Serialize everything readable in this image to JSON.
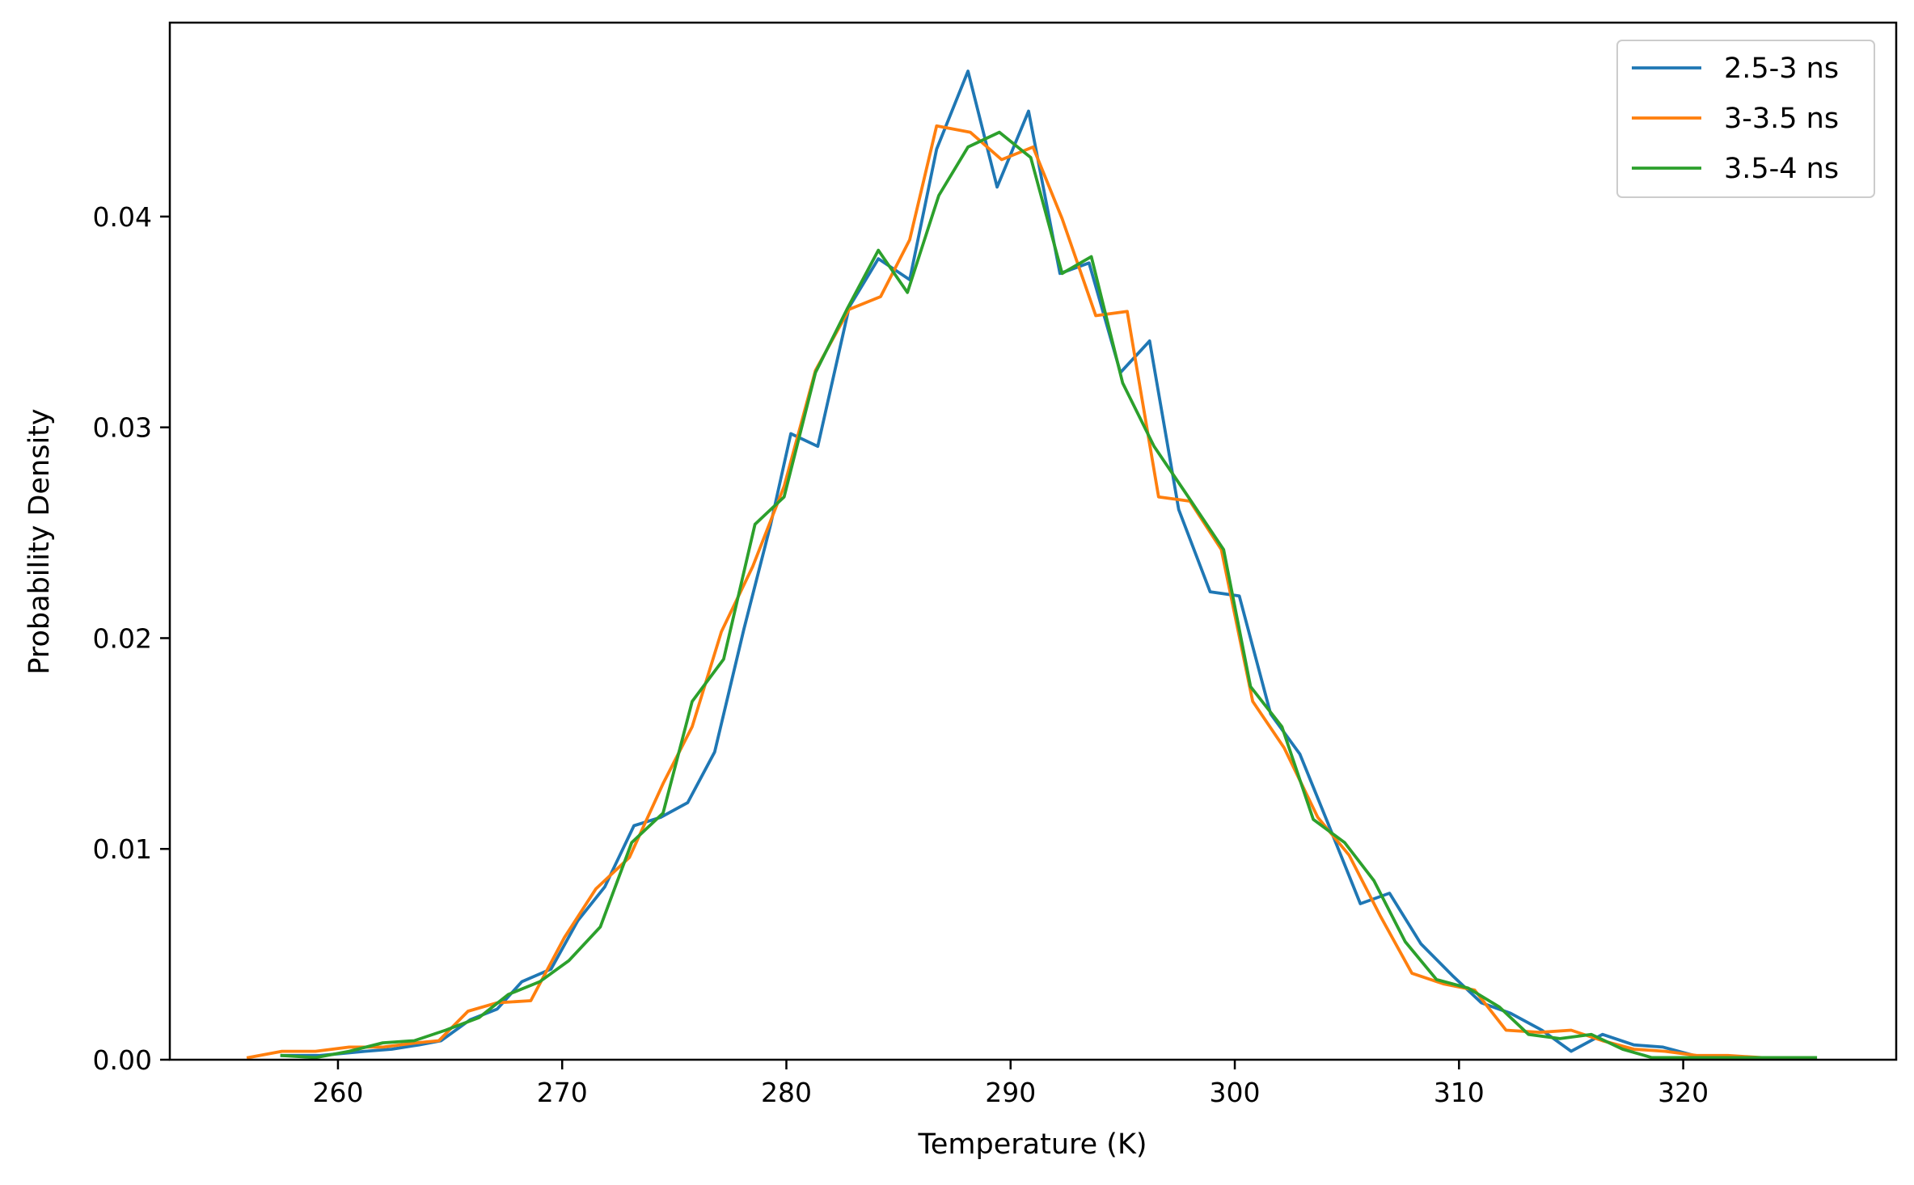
{
  "chart_data": {
    "type": "line",
    "title": "",
    "xlabel": "Temperature (K)",
    "ylabel": "Probability Density",
    "xlim": [
      252.5,
      329.5
    ],
    "ylim": [
      0,
      0.0492
    ],
    "xticks": [
      260,
      270,
      280,
      290,
      300,
      310,
      320
    ],
    "xtick_labels": [
      "260",
      "270",
      "280",
      "290",
      "300",
      "310",
      "320"
    ],
    "yticks": [
      0,
      0.01,
      0.02,
      0.03,
      0.04
    ],
    "ytick_labels": [
      "0.00",
      "0.01",
      "0.02",
      "0.03",
      "0.04"
    ],
    "grid": false,
    "legend_position": "top-right",
    "series": [
      {
        "name": "2.5-3 ns",
        "color": "#1f77b4",
        "x": [
          257.5,
          259.2,
          261.2,
          262.4,
          263.6,
          264.6,
          265.9,
          267.1,
          268.2,
          269.5,
          270.7,
          271.9,
          273.2,
          274.4,
          275.6,
          276.8,
          278.1,
          279.3,
          280.2,
          281.4,
          282.8,
          284.1,
          285.5,
          286.7,
          288.1,
          289.4,
          290.8,
          292.2,
          293.5,
          294.9,
          296.2,
          297.5,
          298.9,
          300.2,
          301.6,
          302.9,
          304.2,
          305.6,
          306.9,
          308.3,
          309.7,
          311.0,
          312.3,
          313.7,
          315.0,
          316.4,
          317.8,
          319.1,
          320.5,
          321.8,
          323.2
        ],
        "y": [
          0.0002,
          0.0002,
          0.0004,
          0.0005,
          0.0007,
          0.0009,
          0.0019,
          0.0024,
          0.0037,
          0.0043,
          0.0066,
          0.0082,
          0.0111,
          0.0115,
          0.0122,
          0.0146,
          0.0204,
          0.0254,
          0.0297,
          0.0291,
          0.0357,
          0.038,
          0.037,
          0.0432,
          0.0469,
          0.0414,
          0.045,
          0.0373,
          0.0378,
          0.0326,
          0.0341,
          0.0261,
          0.0222,
          0.022,
          0.0164,
          0.0145,
          0.0111,
          0.0074,
          0.0079,
          0.0055,
          0.004,
          0.0027,
          0.0022,
          0.0014,
          0.0004,
          0.0012,
          0.0007,
          0.0006,
          0.0002,
          0.0001,
          0.0001
        ]
      },
      {
        "name": "3-3.5 ns",
        "color": "#ff7f0e",
        "x": [
          256.0,
          257.5,
          259.0,
          260.5,
          262.0,
          263.5,
          264.5,
          265.8,
          267.1,
          268.6,
          270.1,
          271.5,
          273.0,
          274.5,
          275.8,
          277.1,
          278.5,
          279.9,
          281.3,
          282.8,
          284.2,
          285.5,
          286.7,
          288.2,
          289.6,
          291.0,
          292.3,
          293.8,
          295.2,
          296.6,
          298.0,
          299.4,
          300.8,
          302.2,
          303.7,
          305.1,
          306.5,
          307.9,
          309.3,
          310.7,
          312.1,
          313.6,
          315.0,
          316.4,
          317.8,
          319.2,
          320.6,
          322.0,
          323.5,
          325.0
        ],
        "y": [
          0.0001,
          0.0004,
          0.0004,
          0.0006,
          0.0006,
          0.0008,
          0.0009,
          0.0023,
          0.0027,
          0.0028,
          0.0058,
          0.0081,
          0.0096,
          0.0131,
          0.0158,
          0.0203,
          0.0234,
          0.0272,
          0.0327,
          0.0356,
          0.0362,
          0.0389,
          0.0443,
          0.044,
          0.0427,
          0.0433,
          0.0399,
          0.0353,
          0.0355,
          0.0267,
          0.0265,
          0.0242,
          0.017,
          0.0148,
          0.0115,
          0.0097,
          0.0068,
          0.0041,
          0.0036,
          0.0033,
          0.0014,
          0.0013,
          0.0014,
          0.0009,
          0.0005,
          0.0004,
          0.0002,
          0.0002,
          0.0001,
          0.0001
        ]
      },
      {
        "name": "3.5-4 ns",
        "color": "#2ca02c",
        "x": [
          257.5,
          259.0,
          260.5,
          262.0,
          263.4,
          264.8,
          266.3,
          267.6,
          269.0,
          270.3,
          271.7,
          273.1,
          274.5,
          275.8,
          277.2,
          278.6,
          279.9,
          281.3,
          282.7,
          284.1,
          285.4,
          286.8,
          288.1,
          289.5,
          290.9,
          292.3,
          293.6,
          295.0,
          296.4,
          297.8,
          299.5,
          300.7,
          302.1,
          303.5,
          304.9,
          306.2,
          307.6,
          309.0,
          310.4,
          311.8,
          313.1,
          314.5,
          315.9,
          317.3,
          318.6,
          320.0,
          321.4,
          322.8,
          324.2,
          325.9
        ],
        "y": [
          0.0002,
          0.0001,
          0.0004,
          0.0008,
          0.0009,
          0.0014,
          0.002,
          0.0031,
          0.0037,
          0.0047,
          0.0063,
          0.0103,
          0.0117,
          0.017,
          0.019,
          0.0254,
          0.0267,
          0.0326,
          0.0356,
          0.0384,
          0.0364,
          0.041,
          0.0433,
          0.044,
          0.0428,
          0.0373,
          0.0381,
          0.0321,
          0.0291,
          0.0269,
          0.0242,
          0.0177,
          0.0158,
          0.0114,
          0.0103,
          0.0085,
          0.0056,
          0.0038,
          0.0034,
          0.0025,
          0.0012,
          0.001,
          0.0012,
          0.0005,
          0.0001,
          0.0001,
          0.0001,
          0.0001,
          0.0001,
          0.0001
        ]
      }
    ]
  }
}
